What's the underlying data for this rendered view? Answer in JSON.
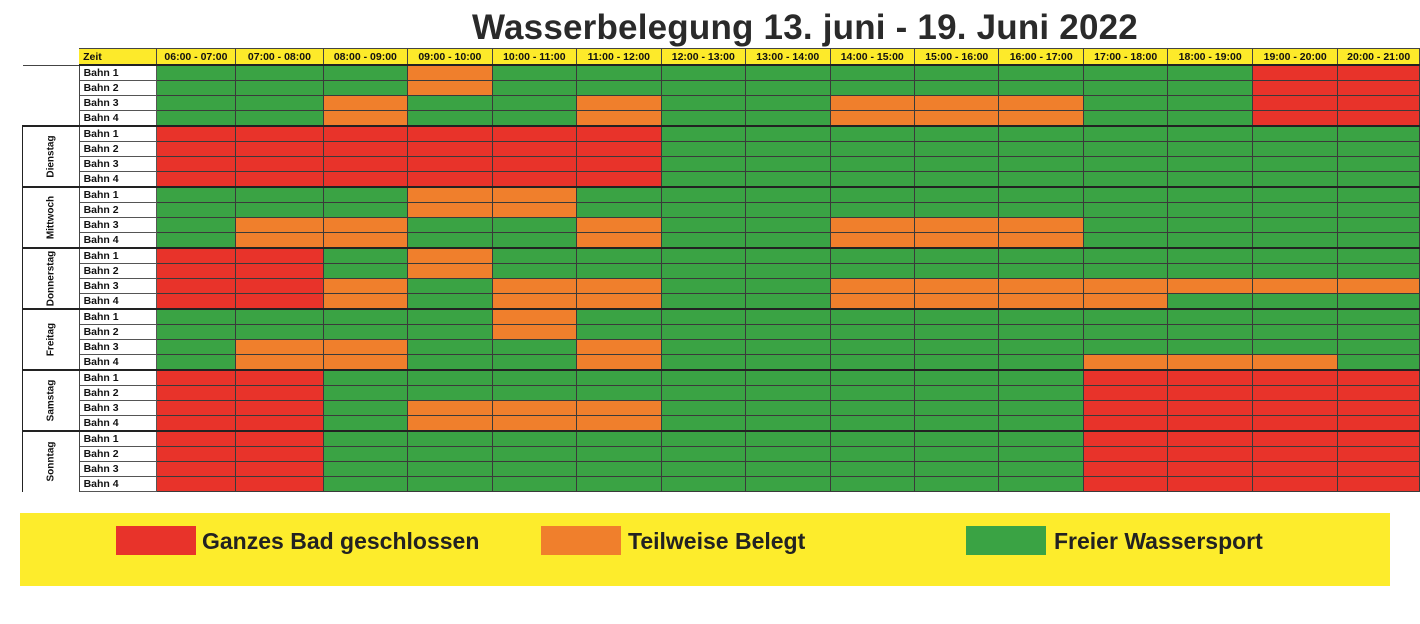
{
  "title": "Wasserbelegung 13. juni - 19. Juni 2022",
  "header": {
    "zeit": "Zeit",
    "times": [
      "06:00 - 07:00",
      "07:00 - 08:00",
      "08:00 - 09:00",
      "09:00 - 10:00",
      "10:00 - 11:00",
      "11:00 - 12:00",
      "12:00 - 13:00",
      "13:00 - 14:00",
      "14:00 - 15:00",
      "15:00 - 16:00",
      "16:00 - 17:00",
      "17:00 - 18:00",
      "18:00 - 19:00",
      "19:00 - 20:00",
      "20:00 - 21:00"
    ]
  },
  "days": [
    {
      "name": "",
      "lanes": [
        {
          "label": "Bahn 1",
          "cells": "GGGOGGGGGGGGGRR"
        },
        {
          "label": "Bahn 2",
          "cells": "GGGOGGGGGGGGGRR"
        },
        {
          "label": "Bahn 3",
          "cells": "GGOGGOGGOOOGGRR"
        },
        {
          "label": "Bahn 4",
          "cells": "GGOGGOGGOOOGGRR"
        }
      ]
    },
    {
      "name": "Dienstag",
      "lanes": [
        {
          "label": "Bahn 1",
          "cells": "RRRRRRGGGGGGGGG"
        },
        {
          "label": "Bahn 2",
          "cells": "RRRRRRGGGGGGGGG"
        },
        {
          "label": "Bahn 3",
          "cells": "RRRRRRGGGGGGGGG"
        },
        {
          "label": "Bahn 4",
          "cells": "RRRRRRGGGGGGGGG"
        }
      ]
    },
    {
      "name": "Mittwoch",
      "lanes": [
        {
          "label": "Bahn 1",
          "cells": "GGGOOGGGGGGGGGG"
        },
        {
          "label": "Bahn 2",
          "cells": "GGGOOGGGGGGGGGG"
        },
        {
          "label": "Bahn 3",
          "cells": "GOOGGOGGOOOGGGG"
        },
        {
          "label": "Bahn 4",
          "cells": "GOOGGOGGOOOGGGG"
        }
      ]
    },
    {
      "name": "Donnerstag",
      "lanes": [
        {
          "label": "Bahn 1",
          "cells": "RRGOGGGGGGGGGGG"
        },
        {
          "label": "Bahn 2",
          "cells": "RRGOGGGGGGGGGGG"
        },
        {
          "label": "Bahn 3",
          "cells": "RROGOOGGOOOOOOO"
        },
        {
          "label": "Bahn 4",
          "cells": "RROGOOGGOOOOGGG"
        }
      ]
    },
    {
      "name": "Freitag",
      "lanes": [
        {
          "label": "Bahn 1",
          "cells": "GGGGOGGGGGGGGGG"
        },
        {
          "label": "Bahn 2",
          "cells": "GGGGOGGGGGGGGGG"
        },
        {
          "label": "Bahn 3",
          "cells": "GOOGGOGGGGGGGGG"
        },
        {
          "label": "Bahn 4",
          "cells": "GOOGGOGGGGGOOOG"
        }
      ]
    },
    {
      "name": "Samstag",
      "lanes": [
        {
          "label": "Bahn 1",
          "cells": "RRGGGGGGGGGRRRR"
        },
        {
          "label": "Bahn 2",
          "cells": "RRGGGGGGGGGRRRR"
        },
        {
          "label": "Bahn 3",
          "cells": "RRGOOOGGGGGRRRR"
        },
        {
          "label": "Bahn 4",
          "cells": "RRGOOOGGGGGRRRR"
        }
      ]
    },
    {
      "name": "Sonntag",
      "lanes": [
        {
          "label": "Bahn 1",
          "cells": "RRGGGGGGGGGRRRR"
        },
        {
          "label": "Bahn 2",
          "cells": "RRGGGGGGGGGRRRR"
        },
        {
          "label": "Bahn 3",
          "cells": "RRGGGGGGGGGRRRR"
        },
        {
          "label": "Bahn 4",
          "cells": "RRGGGGGGGGGRRRR"
        }
      ]
    }
  ],
  "legend": {
    "red": "Ganzes Bad geschlossen",
    "orange": "Teilweise Belegt",
    "green": "Freier Wassersport"
  },
  "colors": {
    "red": "#e8332a",
    "orange": "#f07f2c",
    "green": "#3aa344",
    "yellow": "#fdec2c"
  }
}
